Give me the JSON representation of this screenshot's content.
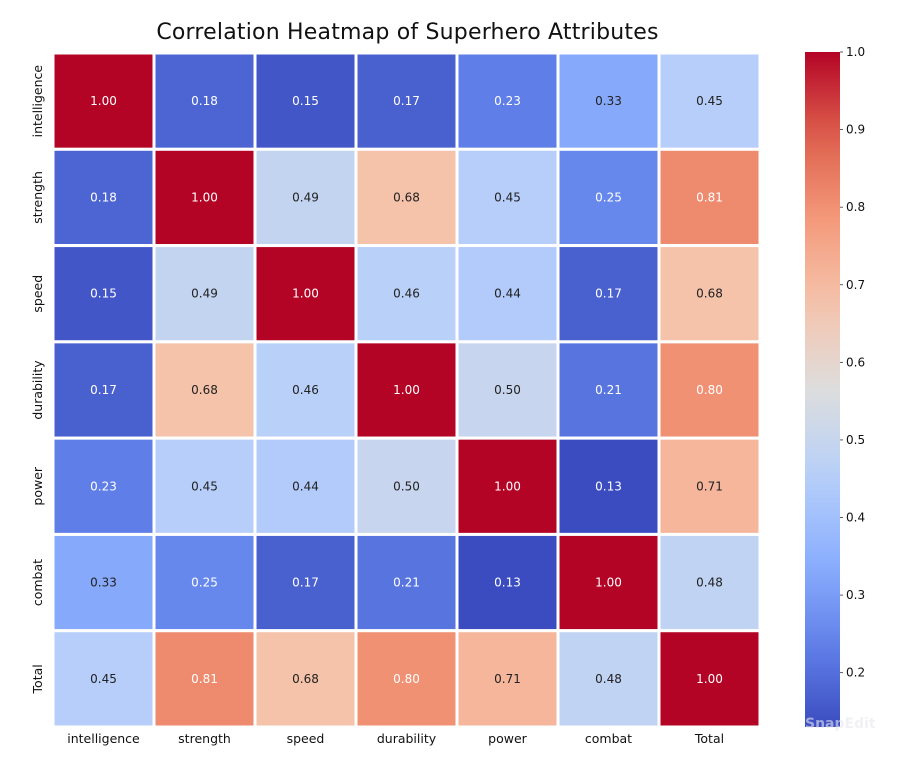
{
  "chart_data": {
    "type": "heatmap",
    "title": "Correlation Heatmap of Superhero Attributes",
    "xlabel": "",
    "ylabel": "",
    "x_categories": [
      "intelligence",
      "strength",
      "speed",
      "durability",
      "power",
      "combat",
      "Total"
    ],
    "y_categories": [
      "intelligence",
      "strength",
      "speed",
      "durability",
      "power",
      "combat",
      "Total"
    ],
    "values": [
      [
        1.0,
        0.18,
        0.15,
        0.17,
        0.23,
        0.33,
        0.45
      ],
      [
        0.18,
        1.0,
        0.49,
        0.68,
        0.45,
        0.25,
        0.81
      ],
      [
        0.15,
        0.49,
        1.0,
        0.46,
        0.44,
        0.17,
        0.68
      ],
      [
        0.17,
        0.68,
        0.46,
        1.0,
        0.5,
        0.21,
        0.8
      ],
      [
        0.23,
        0.45,
        0.44,
        0.5,
        1.0,
        0.13,
        0.71
      ],
      [
        0.33,
        0.25,
        0.17,
        0.21,
        0.13,
        1.0,
        0.48
      ],
      [
        0.45,
        0.81,
        0.68,
        0.8,
        0.71,
        0.48,
        1.0
      ]
    ],
    "value_format": "0.00",
    "colormap": "coolwarm",
    "color_range": [
      0.13,
      1.0
    ],
    "colorbar": {
      "ticks": [
        0.2,
        0.3,
        0.4,
        0.5,
        0.6,
        0.7,
        0.8,
        0.9,
        1.0
      ],
      "tick_labels": [
        "0.2",
        "0.3",
        "0.4",
        "0.5",
        "0.6",
        "0.7",
        "0.8",
        "0.9",
        "1.0"
      ],
      "placement": "right"
    },
    "colors": {
      "low": "#3b4cc0",
      "mid": "#dddddd",
      "high": "#b40426",
      "grid_line": "#ffffff",
      "text_light": "#ffffff",
      "text_dark": "#222222"
    }
  },
  "watermark": "SnapEdit"
}
